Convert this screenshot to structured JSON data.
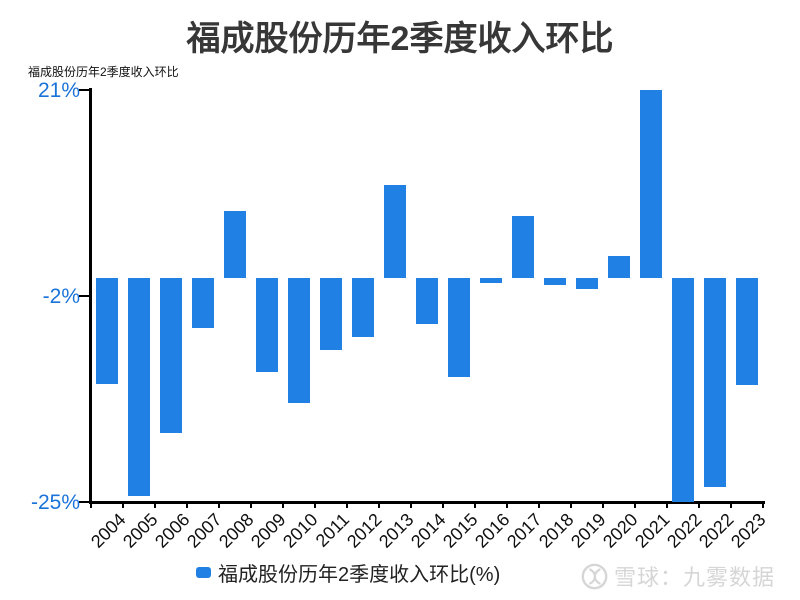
{
  "page": {
    "title": "福成股份历年2季度收入环比",
    "axis_title": "福成股份历年2季度收入环比",
    "legend_label": "福成股份历年2季度收入环比(%)",
    "watermark_text": "雪球：九雾数据",
    "colors": {
      "bar": "#2080e4",
      "tick_label": "#1a73d9",
      "title": "#373737",
      "axis": "#000000",
      "watermark": "#d6d6d6"
    }
  },
  "chart_data": {
    "type": "bar",
    "title": "福成股份历年2季度收入环比",
    "categories": [
      "2004",
      "2005",
      "2006",
      "2007",
      "2008",
      "2009",
      "2010",
      "2011",
      "2012",
      "2013",
      "2014",
      "2015",
      "2016",
      "2017",
      "2018",
      "2019",
      "2020",
      "2021",
      "2022",
      "2022",
      "2023"
    ],
    "values": [
      -11.8,
      -24.3,
      -17.3,
      -5.6,
      7.5,
      -10.5,
      -13.9,
      -8.0,
      -6.6,
      10.4,
      -5.1,
      -11.0,
      -0.5,
      6.9,
      -0.8,
      -1.2,
      2.5,
      21.0,
      -25.0,
      -23.3,
      -11.9
    ],
    "series_name": "福成股份历年2季度收入环比(%)",
    "xlabel": "",
    "ylabel": "福成股份历年2季度收入环比",
    "ylim": [
      -25,
      21
    ],
    "yticks": [
      {
        "value": 21,
        "label": "21%"
      },
      {
        "value": -2,
        "label": "-2%"
      },
      {
        "value": -25,
        "label": "-25%"
      }
    ],
    "grid": false,
    "legend_position": "bottom"
  }
}
